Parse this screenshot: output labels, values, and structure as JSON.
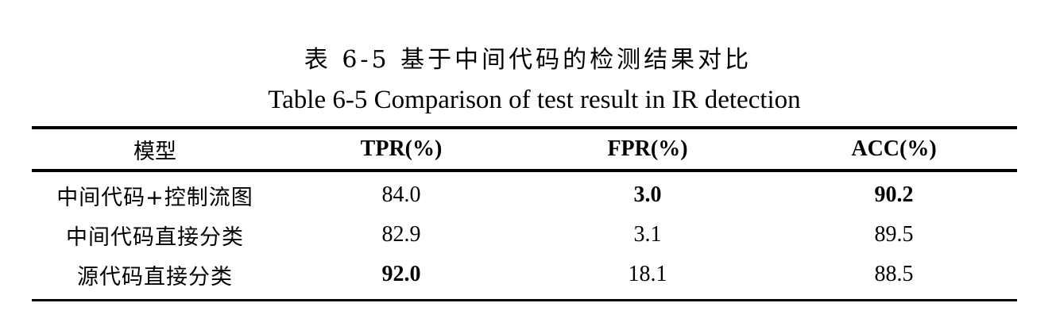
{
  "caption": {
    "zh": "表 6-5  基于中间代码的检测结果对比",
    "en": "Table 6-5 Comparison of test result in IR detection"
  },
  "table": {
    "headers": [
      "模型",
      "TPR(%)",
      "FPR(%)",
      "ACC(%)"
    ],
    "rows": [
      {
        "model": "中间代码+控制流图",
        "tpr": "84.0",
        "fpr": "3.0",
        "acc": "90.2"
      },
      {
        "model": "中间代码直接分类",
        "tpr": "82.9",
        "fpr": "3.1",
        "acc": "89.5"
      },
      {
        "model": "源代码直接分类",
        "tpr": "92.0",
        "fpr": "18.1",
        "acc": "88.5"
      }
    ]
  }
}
